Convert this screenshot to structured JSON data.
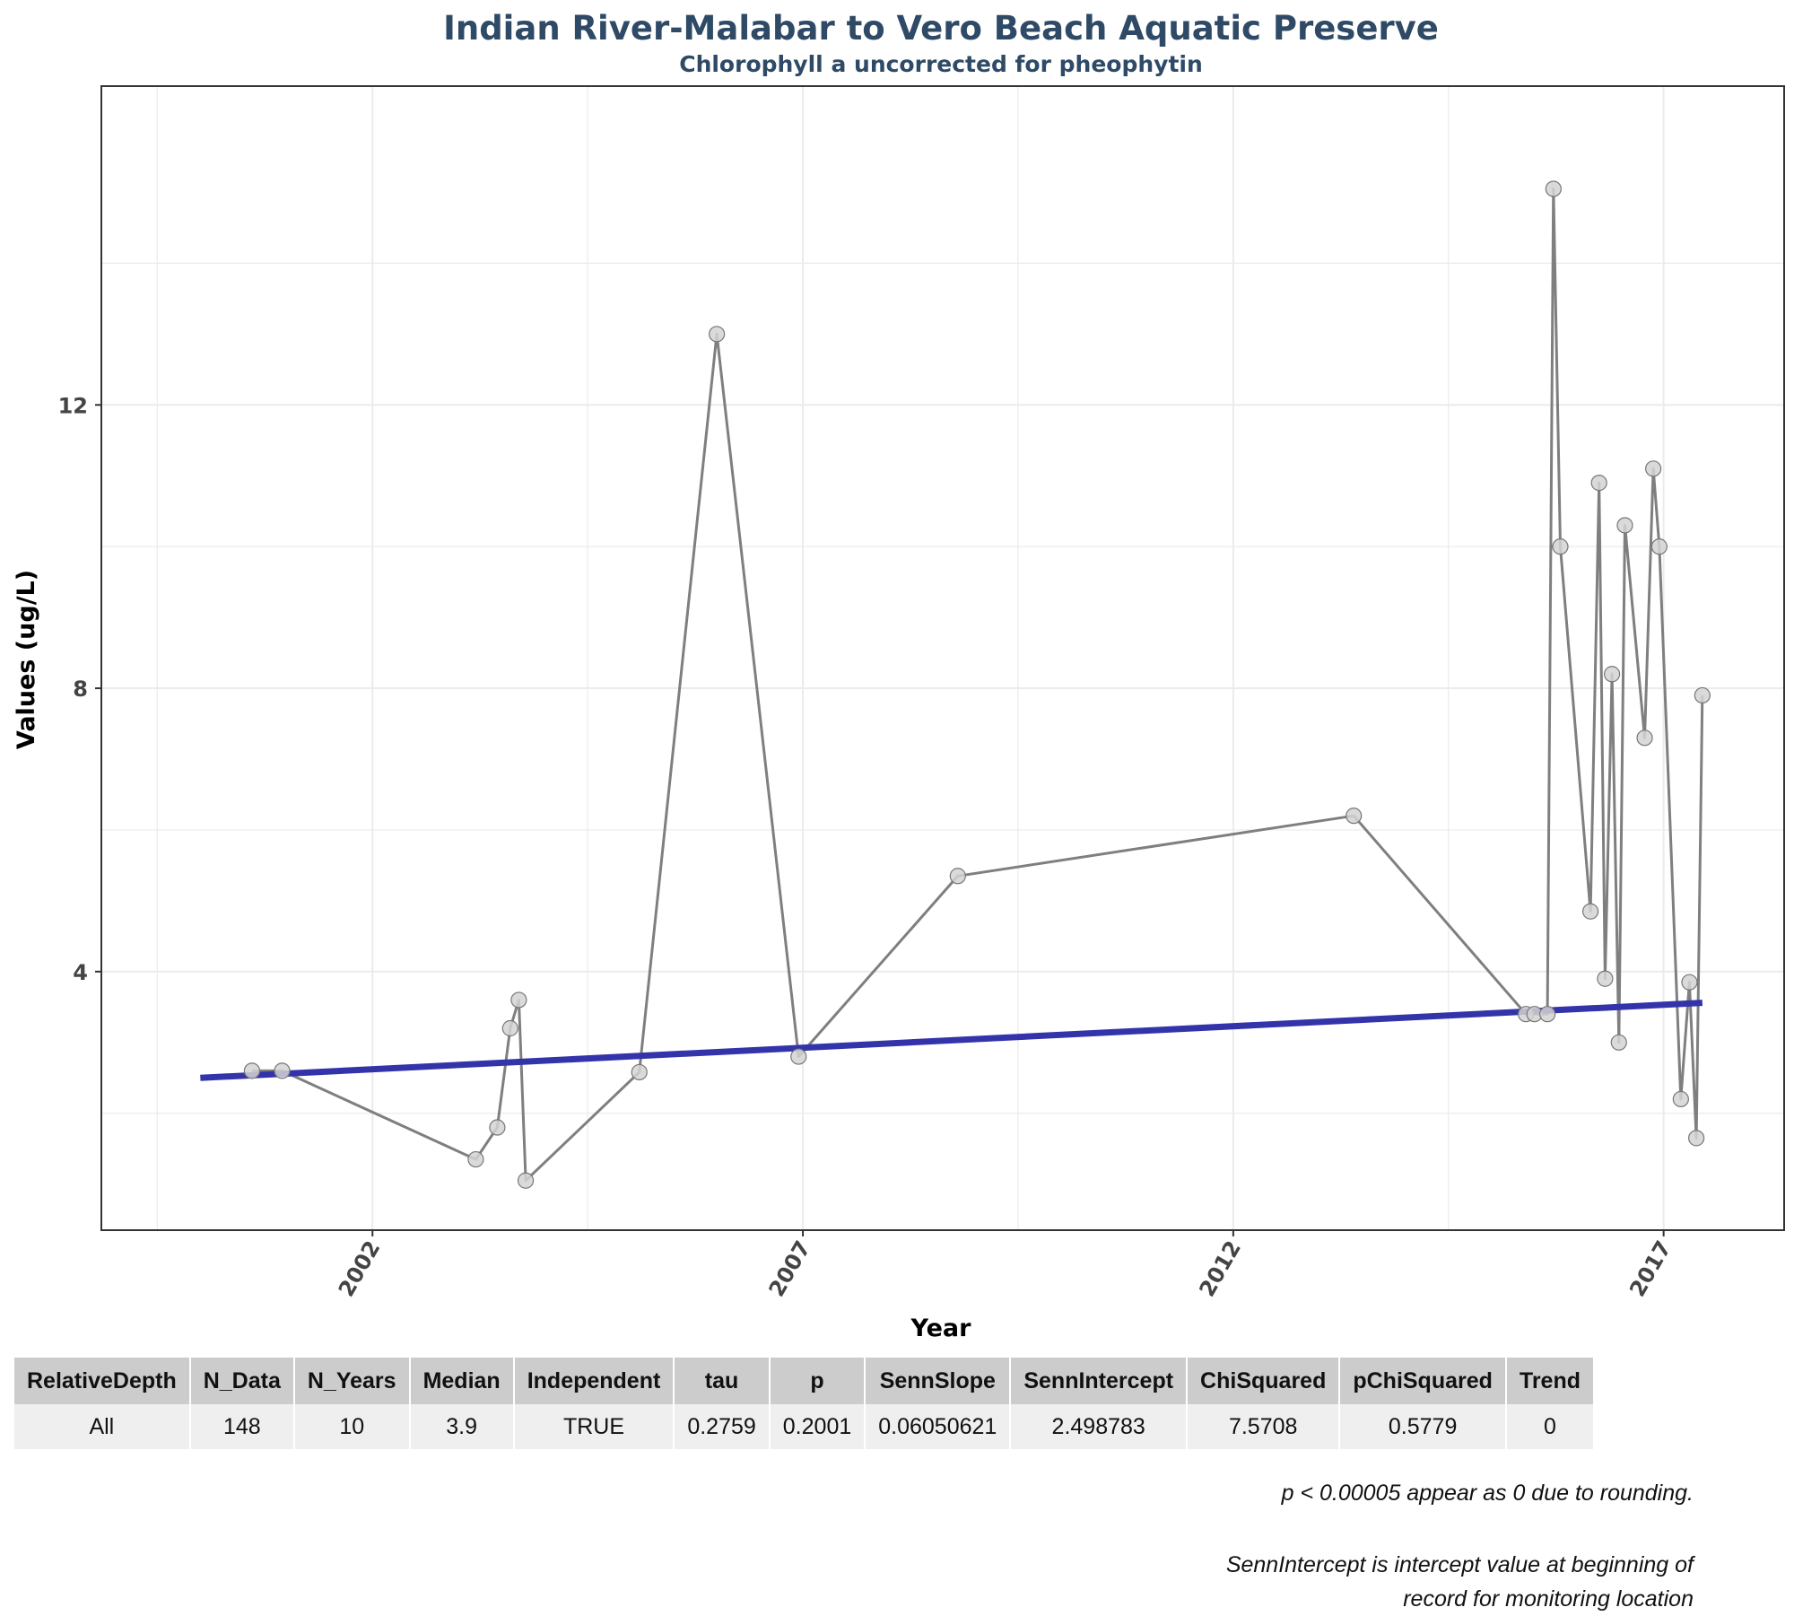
{
  "chart_data": {
    "type": "line",
    "title": "Indian River-Malabar to Vero Beach Aquatic Preserve",
    "subtitle": "Chlorophyll a uncorrected for pheophytin",
    "xlabel": "Year",
    "ylabel": "Values (ug/L)",
    "xlim": [
      1998.85,
      2018.4
    ],
    "ylim": [
      0.35,
      16.5
    ],
    "x_ticks": [
      "2002",
      "2007",
      "2012",
      "2017"
    ],
    "y_ticks": [
      "4",
      "8",
      "12"
    ],
    "grid": true,
    "series": [
      {
        "color": "#7f7f7f",
        "points": [
          [
            2000.6,
            2.6
          ],
          [
            2000.95,
            2.6
          ],
          [
            2003.2,
            1.35
          ],
          [
            2003.45,
            1.8
          ],
          [
            2003.6,
            3.2
          ],
          [
            2003.7,
            3.6
          ],
          [
            2003.78,
            1.05
          ],
          [
            2005.1,
            2.58
          ],
          [
            2006.0,
            13.0
          ],
          [
            2006.95,
            2.8
          ],
          [
            2008.8,
            5.35
          ],
          [
            2013.4,
            6.2
          ],
          [
            2015.4,
            3.4
          ],
          [
            2015.5,
            3.4
          ],
          [
            2015.65,
            3.4
          ],
          [
            2015.72,
            15.05
          ],
          [
            2015.8,
            10.0
          ],
          [
            2016.15,
            4.85
          ],
          [
            2016.25,
            10.9
          ],
          [
            2016.32,
            3.9
          ],
          [
            2016.4,
            8.2
          ],
          [
            2016.48,
            3.0
          ],
          [
            2016.55,
            10.3
          ],
          [
            2016.78,
            7.3
          ],
          [
            2016.88,
            11.1
          ],
          [
            2016.95,
            10.0
          ],
          [
            2017.2,
            2.2
          ],
          [
            2017.3,
            3.85
          ],
          [
            2017.38,
            1.65
          ],
          [
            2017.45,
            7.9
          ]
        ]
      }
    ],
    "trend_line": {
      "color": "#3333aa",
      "points": [
        [
          2000.0,
          2.5
        ],
        [
          2017.45,
          3.56
        ]
      ]
    }
  },
  "table": {
    "headers": [
      "RelativeDepth",
      "N_Data",
      "N_Years",
      "Median",
      "Independent",
      "tau",
      "p",
      "SennSlope",
      "SennIntercept",
      "ChiSquared",
      "pChiSquared",
      "Trend"
    ],
    "rows": [
      [
        "All",
        "148",
        "10",
        "3.9",
        "TRUE",
        "0.2759",
        "0.2001",
        "0.06050621",
        "2.498783",
        "7.5708",
        "0.5779",
        "0"
      ]
    ]
  },
  "notes": {
    "rounding": "p < 0.00005 appear as 0 due to rounding.",
    "intercept_line1": "SennIntercept is intercept value at beginning of",
    "intercept_line2": "record for monitoring location"
  }
}
